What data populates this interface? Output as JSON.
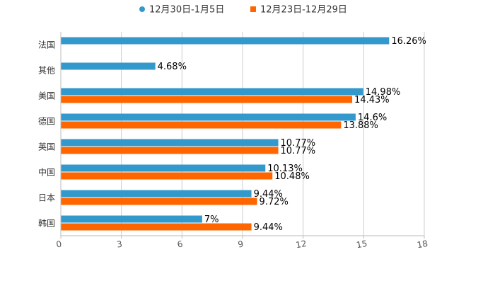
{
  "chart_data": {
    "type": "bar",
    "orientation": "horizontal",
    "categories": [
      "法国",
      "其他",
      "美国",
      "德国",
      "英国",
      "中国",
      "日本",
      "韩国"
    ],
    "series": [
      {
        "name": "12月30日-1月5日",
        "color": "#3399cc",
        "values": [
          16.26,
          4.68,
          14.98,
          14.6,
          10.77,
          10.13,
          9.44,
          7
        ],
        "labels": [
          "16.26%",
          "4.68%",
          "14.98%",
          "14.6%",
          "10.77%",
          "10.13%",
          "9.44%",
          "7%"
        ]
      },
      {
        "name": "12月23日-12月29日",
        "color": "#ff6600",
        "values": [
          null,
          null,
          14.43,
          13.88,
          10.77,
          10.48,
          9.72,
          9.44
        ],
        "labels": [
          "",
          "",
          "14.43%",
          "13.88%",
          "10.77%",
          "10.48%",
          "9.72%",
          "9.44%"
        ]
      }
    ],
    "xlim": [
      0,
      18
    ],
    "xticks": [
      0,
      3,
      6,
      9,
      12,
      15,
      18
    ],
    "xtick_labels": [
      "0",
      "3",
      "6",
      "9",
      "12",
      "15",
      "18"
    ],
    "grid": true,
    "legend": "top-center"
  }
}
